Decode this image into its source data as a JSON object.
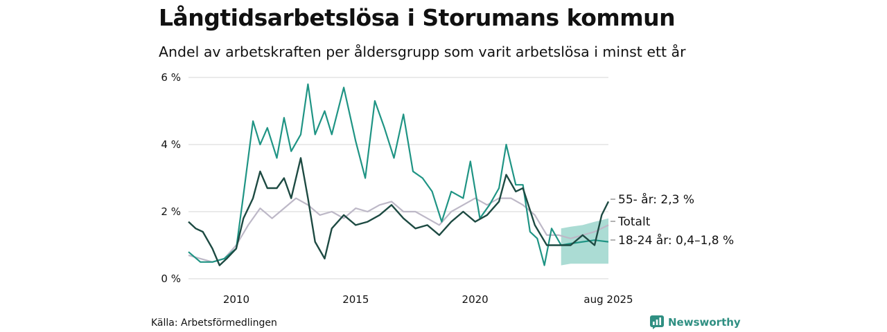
{
  "title": "Långtidsarbetslösa i Storumans kommun",
  "subtitle": "Andel av arbetskraften per åldersgrupp som varit arbetslösa i minst ett år",
  "source": "Källa: Arbetsförmedlingen",
  "brand": "Newsworthy",
  "brand_icon": "bar-chart-icon",
  "chart_data": {
    "type": "line",
    "x_ticks": [
      {
        "value": 2010,
        "label": "2010"
      },
      {
        "value": 2015,
        "label": "2015"
      },
      {
        "value": 2020,
        "label": "2020"
      },
      {
        "value": 2025.58,
        "label": "aug 2025"
      }
    ],
    "y_ticks": [
      {
        "value": 0,
        "label": "0 %"
      },
      {
        "value": 2,
        "label": "2 %"
      },
      {
        "value": 4,
        "label": "4 %"
      },
      {
        "value": 6,
        "label": "6 %"
      }
    ],
    "xlim": [
      2008.0,
      2025.58
    ],
    "ylim": [
      0,
      6
    ],
    "grid": true,
    "colors": {
      "youth": "#1f9484",
      "older": "#1d4a42",
      "total": "#bdb8c7",
      "band": "#8fd0c6"
    },
    "series": [
      {
        "key": "total",
        "name": "Totalt",
        "end_label": "Totalt",
        "points": [
          [
            2008.0,
            0.7
          ],
          [
            2008.5,
            0.6
          ],
          [
            2009.0,
            0.5
          ],
          [
            2009.5,
            0.6
          ],
          [
            2010.0,
            1.0
          ],
          [
            2010.5,
            1.6
          ],
          [
            2011.0,
            2.1
          ],
          [
            2011.5,
            1.8
          ],
          [
            2012.0,
            2.1
          ],
          [
            2012.5,
            2.4
          ],
          [
            2013.0,
            2.2
          ],
          [
            2013.5,
            1.9
          ],
          [
            2014.0,
            2.0
          ],
          [
            2014.5,
            1.8
          ],
          [
            2015.0,
            2.1
          ],
          [
            2015.5,
            2.0
          ],
          [
            2016.0,
            2.2
          ],
          [
            2016.5,
            2.3
          ],
          [
            2017.0,
            2.0
          ],
          [
            2017.5,
            2.0
          ],
          [
            2018.0,
            1.8
          ],
          [
            2018.5,
            1.6
          ],
          [
            2019.0,
            2.0
          ],
          [
            2019.5,
            2.2
          ],
          [
            2020.0,
            2.4
          ],
          [
            2020.5,
            2.2
          ],
          [
            2021.0,
            2.4
          ],
          [
            2021.5,
            2.4
          ],
          [
            2022.0,
            2.2
          ],
          [
            2022.5,
            1.9
          ],
          [
            2023.0,
            1.3
          ],
          [
            2023.5,
            1.3
          ],
          [
            2024.0,
            1.2
          ],
          [
            2024.5,
            1.3
          ],
          [
            2025.0,
            1.4
          ],
          [
            2025.58,
            1.6
          ]
        ]
      },
      {
        "key": "youth",
        "name": "18-24 år",
        "end_label": "18-24 år: 0,4–1,8 %",
        "points": [
          [
            2008.0,
            0.8
          ],
          [
            2008.5,
            0.5
          ],
          [
            2009.0,
            0.5
          ],
          [
            2009.5,
            0.6
          ],
          [
            2010.0,
            0.9
          ],
          [
            2010.3,
            2.5
          ],
          [
            2010.7,
            4.7
          ],
          [
            2011.0,
            4.0
          ],
          [
            2011.3,
            4.5
          ],
          [
            2011.7,
            3.6
          ],
          [
            2012.0,
            4.8
          ],
          [
            2012.3,
            3.8
          ],
          [
            2012.7,
            4.3
          ],
          [
            2013.0,
            5.8
          ],
          [
            2013.3,
            4.3
          ],
          [
            2013.7,
            5.0
          ],
          [
            2014.0,
            4.3
          ],
          [
            2014.5,
            5.7
          ],
          [
            2015.0,
            4.1
          ],
          [
            2015.4,
            3.0
          ],
          [
            2015.8,
            5.3
          ],
          [
            2016.2,
            4.5
          ],
          [
            2016.6,
            3.6
          ],
          [
            2017.0,
            4.9
          ],
          [
            2017.4,
            3.2
          ],
          [
            2017.8,
            3.0
          ],
          [
            2018.2,
            2.6
          ],
          [
            2018.6,
            1.7
          ],
          [
            2019.0,
            2.6
          ],
          [
            2019.5,
            2.4
          ],
          [
            2019.8,
            3.5
          ],
          [
            2020.2,
            1.8
          ],
          [
            2020.6,
            2.2
          ],
          [
            2021.0,
            2.7
          ],
          [
            2021.3,
            4.0
          ],
          [
            2021.7,
            2.8
          ],
          [
            2022.0,
            2.8
          ],
          [
            2022.3,
            1.4
          ],
          [
            2022.6,
            1.2
          ],
          [
            2022.9,
            0.4
          ],
          [
            2023.2,
            1.5
          ],
          [
            2023.6,
            1.0
          ],
          [
            2024.0,
            1.05
          ],
          [
            2024.5,
            1.1
          ],
          [
            2025.0,
            1.15
          ],
          [
            2025.58,
            1.1
          ]
        ],
        "band": [
          [
            2023.6,
            0.4,
            1.5
          ],
          [
            2024.0,
            0.45,
            1.55
          ],
          [
            2024.5,
            0.45,
            1.6
          ],
          [
            2025.0,
            0.45,
            1.7
          ],
          [
            2025.58,
            0.45,
            1.8
          ]
        ]
      },
      {
        "key": "older",
        "name": "55- år",
        "end_label": "55- år: 2,3 %",
        "points": [
          [
            2008.0,
            1.7
          ],
          [
            2008.3,
            1.5
          ],
          [
            2008.6,
            1.4
          ],
          [
            2009.0,
            0.9
          ],
          [
            2009.3,
            0.4
          ],
          [
            2009.6,
            0.6
          ],
          [
            2010.0,
            0.9
          ],
          [
            2010.3,
            1.8
          ],
          [
            2010.7,
            2.4
          ],
          [
            2011.0,
            3.2
          ],
          [
            2011.3,
            2.7
          ],
          [
            2011.7,
            2.7
          ],
          [
            2012.0,
            3.0
          ],
          [
            2012.3,
            2.4
          ],
          [
            2012.7,
            3.6
          ],
          [
            2013.0,
            2.4
          ],
          [
            2013.3,
            1.1
          ],
          [
            2013.7,
            0.6
          ],
          [
            2014.0,
            1.5
          ],
          [
            2014.5,
            1.9
          ],
          [
            2015.0,
            1.6
          ],
          [
            2015.5,
            1.7
          ],
          [
            2016.0,
            1.9
          ],
          [
            2016.5,
            2.2
          ],
          [
            2017.0,
            1.8
          ],
          [
            2017.5,
            1.5
          ],
          [
            2018.0,
            1.6
          ],
          [
            2018.5,
            1.3
          ],
          [
            2019.0,
            1.7
          ],
          [
            2019.5,
            2.0
          ],
          [
            2020.0,
            1.7
          ],
          [
            2020.5,
            1.9
          ],
          [
            2021.0,
            2.3
          ],
          [
            2021.3,
            3.1
          ],
          [
            2021.7,
            2.6
          ],
          [
            2022.0,
            2.7
          ],
          [
            2022.5,
            1.6
          ],
          [
            2023.0,
            1.0
          ],
          [
            2023.5,
            1.0
          ],
          [
            2024.0,
            1.0
          ],
          [
            2024.5,
            1.3
          ],
          [
            2025.0,
            1.0
          ],
          [
            2025.3,
            1.9
          ],
          [
            2025.58,
            2.3
          ]
        ]
      }
    ]
  }
}
